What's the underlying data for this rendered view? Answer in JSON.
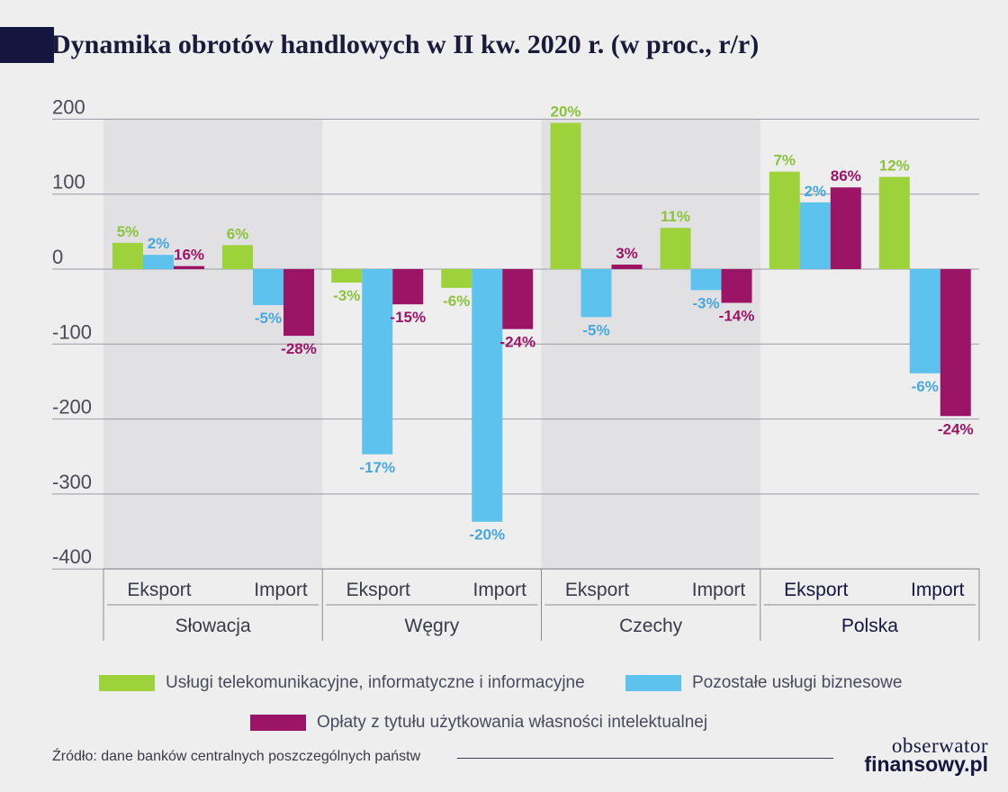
{
  "title": "Dynamika obrotów handlowych w II kw. 2020 r. (w proc., r/r)",
  "source": "Źródło: dane banków centralnych poszczególnych państw",
  "logo": {
    "line1": "obserwator",
    "line2": "finansowy.pl"
  },
  "colors": {
    "series": [
      "#9ed23a",
      "#5ec2ef",
      "#9c1466"
    ],
    "region_shade": "#e1e1e4",
    "grid": "#9a9aa5",
    "label_blue": "#46a8dc",
    "polska_label": "#14163f",
    "other_label": "#3a3a48"
  },
  "chart_data": {
    "type": "bar",
    "ylim": [
      -400,
      200
    ],
    "yticks": [
      200,
      100,
      0,
      -100,
      -200,
      -300,
      -400
    ],
    "countries": [
      "Słowacja",
      "Węgry",
      "Czechy",
      "Polska"
    ],
    "flows": [
      "Eksport",
      "Import"
    ],
    "categories": [
      "Słowacja Eksport",
      "Słowacja Import",
      "Węgry Eksport",
      "Węgry Import",
      "Czechy Eksport",
      "Czechy Import",
      "Polska Eksport",
      "Polska Import"
    ],
    "series": [
      {
        "name": "Usługi telekomunikacyjne, informatyczne i informacyjne",
        "values": [
          35,
          32,
          -18,
          -25,
          195,
          55,
          130,
          123
        ],
        "labels": [
          "5%",
          "6%",
          "-3%",
          "-6%",
          "20%",
          "11%",
          "7%",
          "12%"
        ]
      },
      {
        "name": "Pozostałe usługi biznesowe",
        "values": [
          19,
          -48,
          -247,
          -337,
          -64,
          -28,
          89,
          -139
        ],
        "labels": [
          "2%",
          "-5%",
          "-17%",
          "-20%",
          "-5%",
          "-3%",
          "2%",
          "-6%"
        ]
      },
      {
        "name": "Opłaty z tytułu użytkowania własności intelektualnej",
        "values": [
          4,
          -89,
          -47,
          -80,
          6,
          -45,
          109,
          -196
        ],
        "labels": [
          "16%",
          "-28%",
          "-15%",
          "-24%",
          "3%",
          "-14%",
          "86%",
          "-24%"
        ]
      }
    ],
    "grid": true,
    "legend": "bottom"
  }
}
